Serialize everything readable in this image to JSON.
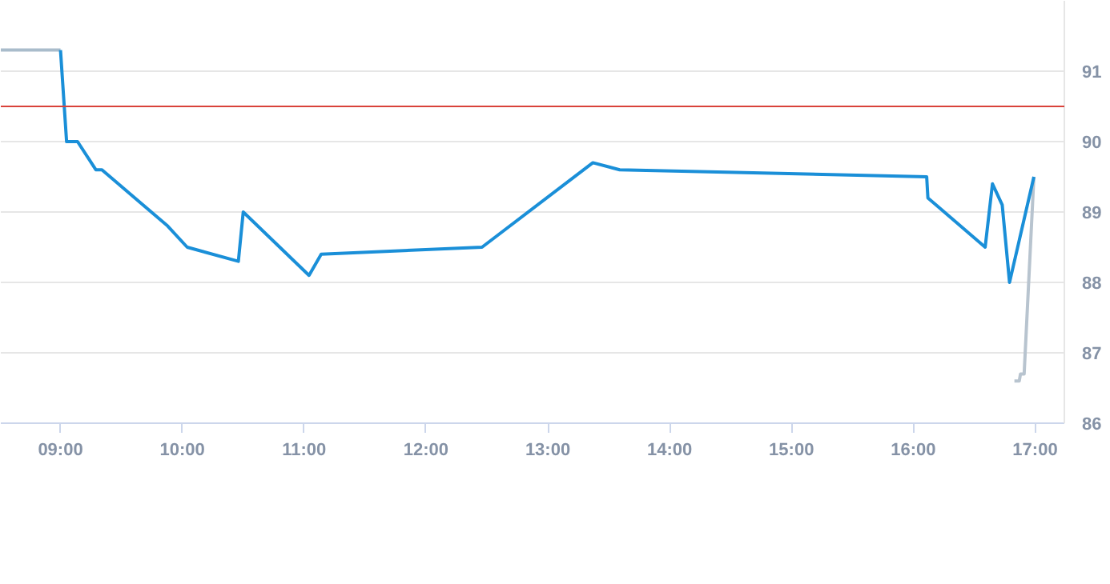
{
  "chart_data": {
    "type": "line",
    "xlim": [
      8.51,
      17.24
    ],
    "ylim": [
      86,
      92
    ],
    "xticks": [
      {
        "value": 9,
        "label": "09:00"
      },
      {
        "value": 10,
        "label": "10:00"
      },
      {
        "value": 11,
        "label": "11:00"
      },
      {
        "value": 12,
        "label": "12:00"
      },
      {
        "value": 13,
        "label": "13:00"
      },
      {
        "value": 14,
        "label": "14:00"
      },
      {
        "value": 15,
        "label": "15:00"
      },
      {
        "value": 16,
        "label": "16:00"
      },
      {
        "value": 17,
        "label": "17:00"
      }
    ],
    "yticks": [
      86,
      87,
      88,
      89,
      90,
      91
    ],
    "grid": "y",
    "series": [
      {
        "color": "#a9bccb",
        "x": [
          8.51,
          9.0
        ],
        "values": [
          91.3,
          91.3
        ]
      },
      {
        "color": "#b8c4cf",
        "x": [
          16.83,
          16.87,
          16.88,
          16.91,
          16.99
        ],
        "values": [
          86.6,
          86.6,
          86.7,
          86.7,
          89.5
        ]
      },
      {
        "color": "#1a8fd8",
        "x": [
          9.0,
          9.05,
          9.14,
          9.29,
          9.34,
          9.88,
          10.04,
          10.46,
          10.5,
          11.04,
          11.14,
          12.46,
          13.37,
          13.59,
          16.11,
          16.12,
          16.59,
          16.65,
          16.73,
          16.79,
          16.99
        ],
        "values": [
          91.3,
          90.0,
          90.0,
          89.6,
          89.6,
          88.8,
          88.5,
          88.3,
          89.0,
          88.1,
          88.4,
          88.5,
          89.7,
          89.6,
          89.5,
          89.2,
          88.5,
          89.4,
          89.1,
          88.0,
          89.5
        ]
      }
    ],
    "ref_lines": [
      {
        "axis": "y",
        "value": 90.5,
        "color": "#d9423a"
      }
    ]
  }
}
